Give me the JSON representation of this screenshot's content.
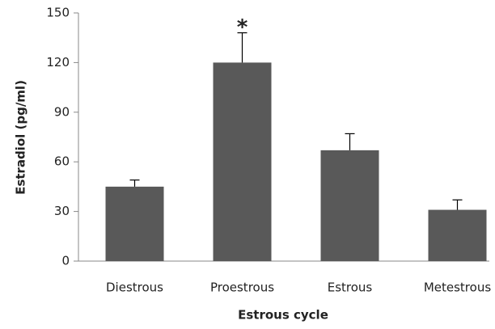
{
  "chart_data": {
    "type": "bar",
    "x_label": "Estrous cycle",
    "y_label": "Estradiol (pg/ml)",
    "categories": [
      "Diestrous",
      "Proestrous",
      "Estrous",
      "Metestrous"
    ],
    "values": [
      45,
      120,
      67,
      31
    ],
    "errors": [
      4,
      18,
      10,
      6
    ],
    "color": "#595959",
    "error_color": "#000000",
    "ylim": [
      0,
      150
    ],
    "yticks": [
      0,
      30,
      60,
      90,
      120,
      150
    ],
    "grid": false,
    "annotations": [
      {
        "text": "*",
        "x": "Proestrous"
      }
    ]
  }
}
